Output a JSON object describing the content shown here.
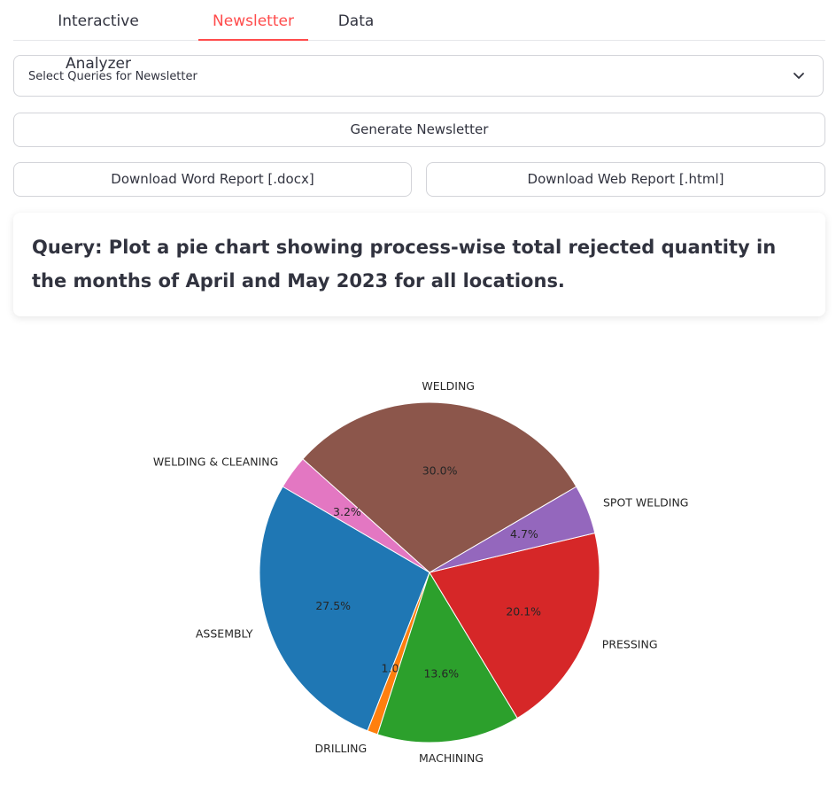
{
  "tabs": [
    {
      "label": "Interactive Analyzer",
      "active": false
    },
    {
      "label": "Newsletter",
      "active": true
    },
    {
      "label": "Data",
      "active": false
    }
  ],
  "query_select": {
    "placeholder": "Select Queries for Newsletter"
  },
  "buttons": {
    "generate": "Generate Newsletter",
    "download_word": "Download Word Report [.docx]",
    "download_web": "Download Web Report [.html]"
  },
  "query_card": {
    "text": "Query: Plot a pie chart showing process-wise total rejected quantity in the months of April and May 2023 for all locations."
  },
  "chart_data": {
    "type": "pie",
    "title": "",
    "slices": [
      {
        "label": "ASSEMBLY",
        "value": 27.5,
        "pct_label": "27.5%",
        "color": "#1f77b4"
      },
      {
        "label": "DRILLING",
        "value": 1.0,
        "pct_label": "1.0%",
        "color": "#ff7f0e"
      },
      {
        "label": "MACHINING",
        "value": 13.6,
        "pct_label": "13.6%",
        "color": "#2ca02c"
      },
      {
        "label": "PRESSING",
        "value": 20.1,
        "pct_label": "20.1%",
        "color": "#d62728"
      },
      {
        "label": "SPOT WELDING",
        "value": 4.7,
        "pct_label": "4.7%",
        "color": "#9467bd"
      },
      {
        "label": "WELDING",
        "value": 30.0,
        "pct_label": "30.0%",
        "color": "#8c564b"
      },
      {
        "label": "WELDING & CLEANING",
        "value": 3.2,
        "pct_label": "3.2%",
        "color": "#e377c2"
      }
    ]
  }
}
